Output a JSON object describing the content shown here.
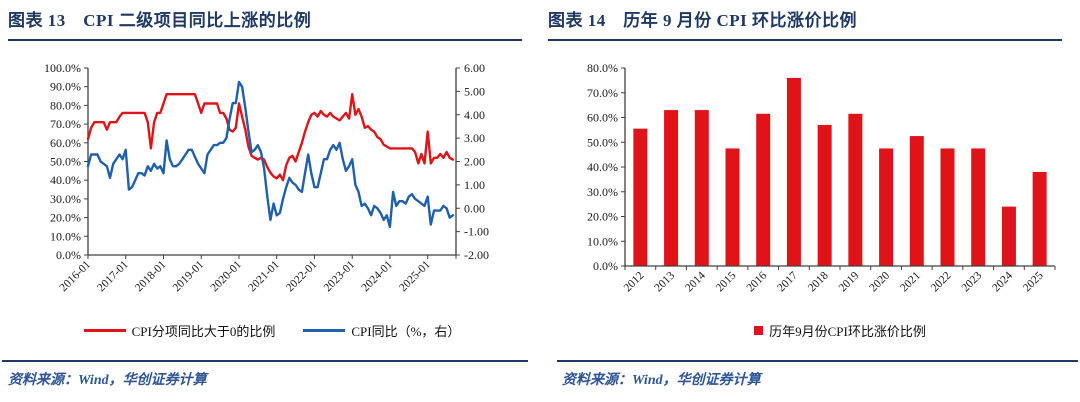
{
  "page": {
    "background": "#ffffff",
    "accent_navy": "#1F3864",
    "source_blue": "#2F5597",
    "red": "#E01418",
    "blue": "#1F5FAC"
  },
  "fig13": {
    "title": "图表 13　CPI 二级项目同比上涨的比例",
    "legend": [
      {
        "label": "CPI分项同比大于0的比例",
        "color": "#E01418"
      },
      {
        "label": "CPI同比（%，右）",
        "color": "#1F5FAC"
      }
    ],
    "source": "资料来源：Wind，华创证券计算"
  },
  "fig14": {
    "title": "图表 14　历年 9 月份 CPI 环比涨价比例",
    "legend": [
      {
        "label": "历年9月份CPI环比涨价比例",
        "color": "#E01418"
      }
    ],
    "source": "资料来源：Wind，华创证券计算"
  },
  "chart_data": [
    {
      "type": "line",
      "title": "CPI 二级项目同比上涨的比例",
      "x_start": "2016-01",
      "x_end": "2025-09",
      "frequency": "monthly",
      "x_tick_labels": [
        "2016-01",
        "2017-01",
        "2018-01",
        "2019-01",
        "2020-01",
        "2021-01",
        "2022-01",
        "2023-01",
        "2024-01",
        "2025-01"
      ],
      "left_axis": {
        "min": 0,
        "max": 100,
        "step": 10,
        "unit": "%",
        "tick_format": "0.0%"
      },
      "right_axis": {
        "min": -2,
        "max": 6,
        "step": 1,
        "tick_format": "0.00"
      },
      "grid": false,
      "legend_position": "bottom",
      "series": [
        {
          "name": "CPI分项同比大于0的比例",
          "axis": "left",
          "color": "#E01418",
          "values": [
            62,
            68,
            71,
            71,
            71,
            71,
            67,
            71,
            71,
            71,
            74,
            76,
            76,
            76,
            76,
            76,
            76,
            76,
            76,
            71,
            57,
            71,
            76,
            76,
            81,
            86,
            86,
            86,
            86,
            86,
            86,
            86,
            86,
            86,
            86,
            81,
            76,
            81,
            81,
            81,
            81,
            81,
            76,
            76,
            73,
            67,
            66,
            68,
            81,
            74,
            67,
            58,
            53,
            52,
            51,
            52,
            51,
            47,
            44,
            42,
            41,
            43,
            40,
            48,
            52,
            53,
            50,
            55,
            60,
            66,
            71,
            75,
            76,
            74,
            77,
            75,
            74,
            76,
            74,
            73,
            72,
            74,
            76,
            73,
            86,
            75,
            78,
            74,
            68,
            69,
            67,
            66,
            63,
            62,
            59,
            58,
            57,
            57,
            57,
            57,
            57,
            57,
            57,
            57,
            55,
            49,
            54,
            49,
            66,
            49,
            52,
            52,
            54,
            52,
            55,
            52,
            51
          ]
        },
        {
          "name": "CPI同比（%，右）",
          "axis": "right",
          "color": "#1F5FAC",
          "values": [
            1.8,
            2.3,
            2.3,
            2.3,
            2.0,
            1.9,
            1.8,
            1.3,
            1.9,
            2.1,
            2.3,
            2.1,
            2.5,
            0.8,
            0.9,
            1.2,
            1.5,
            1.5,
            1.4,
            1.8,
            1.6,
            1.9,
            1.7,
            1.8,
            1.5,
            2.9,
            2.1,
            1.8,
            1.8,
            1.9,
            2.1,
            2.3,
            2.5,
            2.5,
            2.2,
            1.9,
            1.7,
            1.5,
            2.3,
            2.5,
            2.7,
            2.7,
            2.8,
            2.8,
            3.0,
            3.8,
            4.5,
            4.5,
            5.4,
            5.2,
            4.3,
            3.3,
            2.4,
            2.5,
            2.7,
            2.4,
            1.7,
            0.5,
            -0.5,
            0.2,
            -0.3,
            -0.2,
            0.4,
            0.9,
            1.3,
            1.1,
            1.0,
            0.8,
            0.7,
            1.5,
            2.3,
            1.5,
            0.9,
            0.9,
            1.5,
            2.1,
            2.1,
            2.5,
            2.7,
            2.5,
            2.8,
            2.1,
            1.6,
            1.8,
            2.1,
            1.0,
            0.7,
            0.1,
            0.2,
            0.0,
            -0.3,
            0.1,
            0.0,
            -0.2,
            -0.5,
            -0.3,
            -0.8,
            0.7,
            0.1,
            0.3,
            0.3,
            0.2,
            0.5,
            0.6,
            0.4,
            0.3,
            0.2,
            0.1,
            0.5,
            -0.7,
            -0.1,
            -0.1,
            -0.1,
            0.1,
            0.0,
            -0.4,
            -0.3
          ]
        }
      ]
    },
    {
      "type": "bar",
      "title": "历年 9 月份 CPI 环比涨价比例",
      "categories": [
        "2012",
        "2013",
        "2014",
        "2015",
        "2016",
        "2017",
        "2018",
        "2019",
        "2020",
        "2021",
        "2022",
        "2023",
        "2024",
        "2025"
      ],
      "values": [
        55.5,
        63,
        63,
        47.5,
        61.5,
        76,
        57,
        61.5,
        47.5,
        52.5,
        47.5,
        47.5,
        24,
        38
      ],
      "color": "#E01418",
      "y_axis": {
        "min": 0,
        "max": 80,
        "step": 10,
        "unit": "%",
        "tick_format": "0.0%"
      },
      "legend": [
        "历年9月份CPI环比涨价比例"
      ],
      "legend_position": "bottom",
      "grid": false
    }
  ]
}
